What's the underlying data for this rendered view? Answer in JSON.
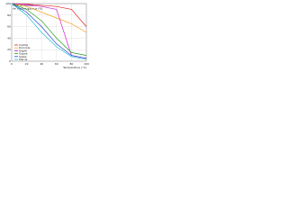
{
  "chart_data": {
    "type": "line",
    "title": [
      "Taux de solides",
      "de résidus gazeux (%)"
    ],
    "x_label": "Température (°C)",
    "x": [
      0,
      20,
      40,
      60,
      80,
      100
    ],
    "xlim": [
      0,
      100
    ],
    "xticks": [
      0,
      20,
      40,
      60,
      80,
      100
    ],
    "ylim": [
      0,
      100
    ],
    "yticks": [
      0,
      20,
      40,
      60,
      80,
      100
    ],
    "grid": true,
    "legend": "lower-left",
    "series": [
      {
        "name": "Calcite",
        "color": "#e02020",
        "values": [
          100,
          99,
          97,
          95,
          90,
          60
        ]
      },
      {
        "name": "Dolomie",
        "color": "#f0a020",
        "values": [
          100,
          95,
          85,
          75,
          65,
          50
        ]
      },
      {
        "name": "Argile",
        "color": "#d020d0",
        "values": [
          100,
          98,
          95,
          90,
          10,
          5
        ]
      },
      {
        "name": "Gypse",
        "color": "#20a020",
        "values": [
          100,
          90,
          70,
          40,
          15,
          10
        ]
      },
      {
        "name": "Sable",
        "color": "#2040e0",
        "values": [
          100,
          85,
          60,
          30,
          10,
          5
        ]
      },
      {
        "name": "Marne",
        "color": "#20c0d0",
        "values": [
          100,
          80,
          50,
          25,
          8,
          3
        ]
      }
    ]
  }
}
